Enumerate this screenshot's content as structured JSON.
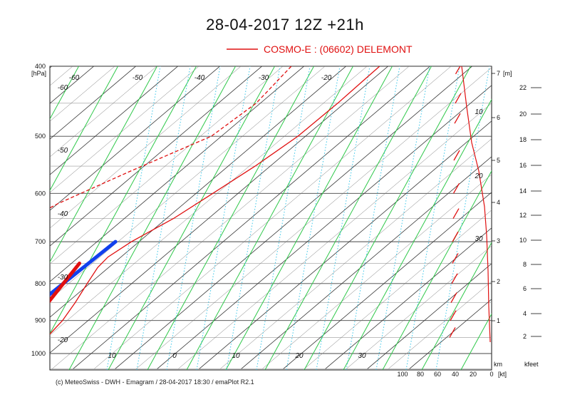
{
  "chart_data": {
    "type": "line",
    "title": "28-04-2017  12Z +21h",
    "legend": {
      "entries": [
        {
          "name": "COSMO-E : (06602)  DELEMONT",
          "color": "#e01010"
        }
      ],
      "placement": "top-right"
    },
    "pressure_axis": {
      "unit": "[hPa]",
      "ticks": [
        400,
        500,
        600,
        700,
        800,
        900,
        1000
      ]
    },
    "height_km_axis": {
      "unit": "[m]",
      "label_bottom": "km",
      "ticks": [
        1,
        2,
        3,
        4,
        5,
        6,
        7
      ]
    },
    "height_kfeet_axis": {
      "label_bottom": "kfeet",
      "ticks": [
        2,
        4,
        6,
        8,
        10,
        12,
        14,
        16,
        18,
        20,
        22
      ]
    },
    "wind_axis": {
      "unit": "[kt]",
      "ticks": [
        100,
        80,
        60,
        40,
        20,
        0
      ]
    },
    "wind_speed_labels": [
      "10",
      "20",
      "30"
    ],
    "isotherm_labels": [
      "-60",
      "-50",
      "-40",
      "-30",
      "-20",
      "10",
      "0",
      "10",
      "20",
      "30"
    ],
    "dry_adiabat_labels": [
      "-60",
      "-50",
      "-40",
      "-30",
      "-20"
    ],
    "grid": true,
    "colors": {
      "temperature": "#e01010",
      "dewpoint": "#e01010",
      "wind": "#e01010",
      "isotherm": "#333333",
      "dry_adiabat": "#2fc84a",
      "mixing_ratio": "#39c6e8",
      "blue_annotation": "#1140ee",
      "navy_annotation": "#5d5ac6"
    },
    "series": [
      {
        "name": "COSMO-E : (06602)  DELEMONT",
        "kind": "temperature",
        "points": [
          [
            -32.0,
            400
          ],
          [
            -31.6,
            450
          ],
          [
            -31.8,
            500
          ],
          [
            -33.6,
            550
          ],
          [
            -36.0,
            600
          ],
          [
            -38.3,
            650
          ],
          [
            -41.8,
            700
          ],
          [
            -43.1,
            735
          ],
          [
            -42.6,
            760
          ],
          [
            -40.6,
            800
          ],
          [
            -38.1,
            850
          ],
          [
            -36.1,
            900
          ],
          [
            -35.2,
            945
          ]
        ]
      },
      {
        "kind": "dewpoint",
        "points": [
          [
            -53.0,
            400
          ],
          [
            -51.0,
            450
          ],
          [
            -52.4,
            500
          ],
          [
            -62.0,
            560
          ],
          [
            -70.0,
            620
          ],
          [
            -76.5,
            700
          ],
          [
            -58.2,
            750
          ],
          [
            -50.7,
            800
          ],
          [
            -45.0,
            850
          ],
          [
            -41.0,
            900
          ],
          [
            -37.5,
            940
          ]
        ]
      },
      {
        "kind": "wind_barbs",
        "points": [
          [
            0.05,
            410
          ],
          [
            0.1,
            450
          ],
          [
            0.2,
            480
          ],
          [
            0.3,
            540
          ],
          [
            0.35,
            600
          ],
          [
            0.4,
            650
          ],
          [
            0.5,
            700
          ],
          [
            0.5,
            750
          ],
          [
            0.6,
            800
          ],
          [
            0.7,
            850
          ],
          [
            0.8,
            900
          ],
          [
            0.9,
            950
          ]
        ]
      }
    ],
    "annotations": [
      {
        "type": "thick-line",
        "color": "#1140ee",
        "points": [
          [
            -47.0,
            920
          ],
          [
            -45.6,
            700
          ]
        ]
      },
      {
        "type": "thick-line",
        "color": "#e01010",
        "points": [
          [
            -48.1,
            750
          ],
          [
            -43.9,
            870
          ],
          [
            -42.0,
            910
          ],
          [
            -40.3,
            960
          ]
        ]
      },
      {
        "type": "loop",
        "color": "#5d5ac6",
        "center": [
          -50.5,
          935
        ]
      }
    ]
  },
  "footer": "(c) MeteoSwiss - DWH - Emagram / 28-04-2017  18:30 / emaPlot R2.1"
}
